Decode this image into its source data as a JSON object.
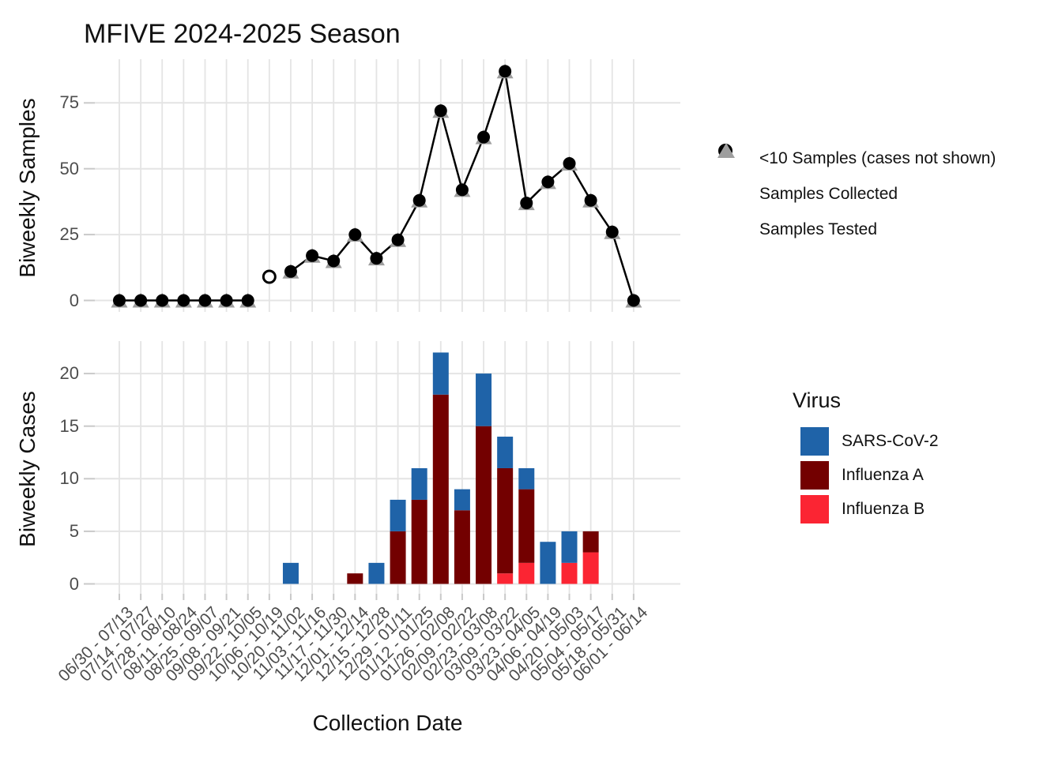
{
  "title": "MFIVE 2024-2025 Season",
  "chart_data": {
    "type": "combo",
    "x_axis_label": "Collection Date",
    "categories": [
      "06/30 - 07/13",
      "07/14 - 07/27",
      "07/28 - 08/10",
      "08/11 - 08/24",
      "08/25 - 09/07",
      "09/08 - 09/21",
      "09/22 - 10/05",
      "10/06 - 10/19",
      "10/20 - 11/02",
      "11/03 - 11/16",
      "11/17 - 11/30",
      "12/01 - 12/14",
      "12/15 - 12/28",
      "12/29 - 01/11",
      "01/12 - 01/25",
      "01/26 - 02/08",
      "02/09 - 02/22",
      "02/23 - 03/08",
      "03/09 - 03/22",
      "03/23 - 04/05",
      "04/06 - 04/19",
      "04/20 - 05/03",
      "05/04 - 05/17",
      "05/18 - 05/31",
      "06/01 - 06/14"
    ],
    "panels": [
      {
        "name": "samples",
        "type": "line",
        "ylabel": "Biweekly Samples",
        "yticks": [
          0,
          25,
          50,
          75
        ],
        "grid": true,
        "series": [
          {
            "name": "Samples Collected",
            "marker": "filled-circle",
            "color": "#000000",
            "values": [
              0,
              0,
              0,
              0,
              0,
              0,
              0,
              9,
              11,
              17,
              15,
              25,
              16,
              23,
              38,
              72,
              42,
              62,
              87,
              37,
              45,
              52,
              38,
              26,
              0
            ]
          },
          {
            "name": "Samples Tested",
            "marker": "triangle",
            "color": "#9e9e9e",
            "values": [
              0,
              0,
              0,
              0,
              0,
              0,
              0,
              null,
              11,
              17,
              15,
              25,
              16,
              23,
              38,
              72,
              42,
              62,
              87,
              37,
              45,
              52,
              38,
              26,
              0
            ]
          }
        ],
        "open_marker_category_index": 7,
        "line_break_category_indices": [
          7
        ],
        "legend": [
          {
            "marker": "open-circle",
            "label": "<10 Samples (cases not shown)"
          },
          {
            "marker": "filled-circle",
            "label": "Samples Collected"
          },
          {
            "marker": "triangle",
            "label": "Samples Tested"
          }
        ]
      },
      {
        "name": "cases",
        "type": "stacked-bar",
        "ylabel": "Biweekly Cases",
        "yticks": [
          0,
          5,
          10,
          15,
          20
        ],
        "grid": true,
        "legend_title": "Virus",
        "legend_position": "right",
        "stack_order_bottom_to_top": [
          "Influenza B",
          "Influenza A",
          "SARS-CoV-2"
        ],
        "series": [
          {
            "name": "SARS-CoV-2",
            "color": "#1f63a8",
            "values": [
              0,
              0,
              0,
              0,
              0,
              0,
              0,
              0,
              2,
              0,
              0,
              0,
              2,
              3,
              3,
              4,
              2,
              5,
              3,
              2,
              4,
              3,
              0,
              0,
              0
            ]
          },
          {
            "name": "Influenza A",
            "color": "#730000",
            "values": [
              0,
              0,
              0,
              0,
              0,
              0,
              0,
              0,
              0,
              0,
              0,
              1,
              0,
              5,
              8,
              18,
              7,
              15,
              10,
              7,
              0,
              0,
              2,
              0,
              0
            ]
          },
          {
            "name": "Influenza B",
            "color": "#fb2533",
            "values": [
              0,
              0,
              0,
              0,
              0,
              0,
              0,
              0,
              0,
              0,
              0,
              0,
              0,
              0,
              0,
              0,
              0,
              0,
              1,
              2,
              0,
              2,
              3,
              0,
              0
            ]
          }
        ]
      }
    ],
    "style": {
      "gridline_color": "#e4e4e4",
      "tick_color": "#c9c9c9",
      "axis_text_color": "#4d4d4d",
      "line_color": "#000000",
      "triangle_color": "#9e9e9e"
    }
  }
}
